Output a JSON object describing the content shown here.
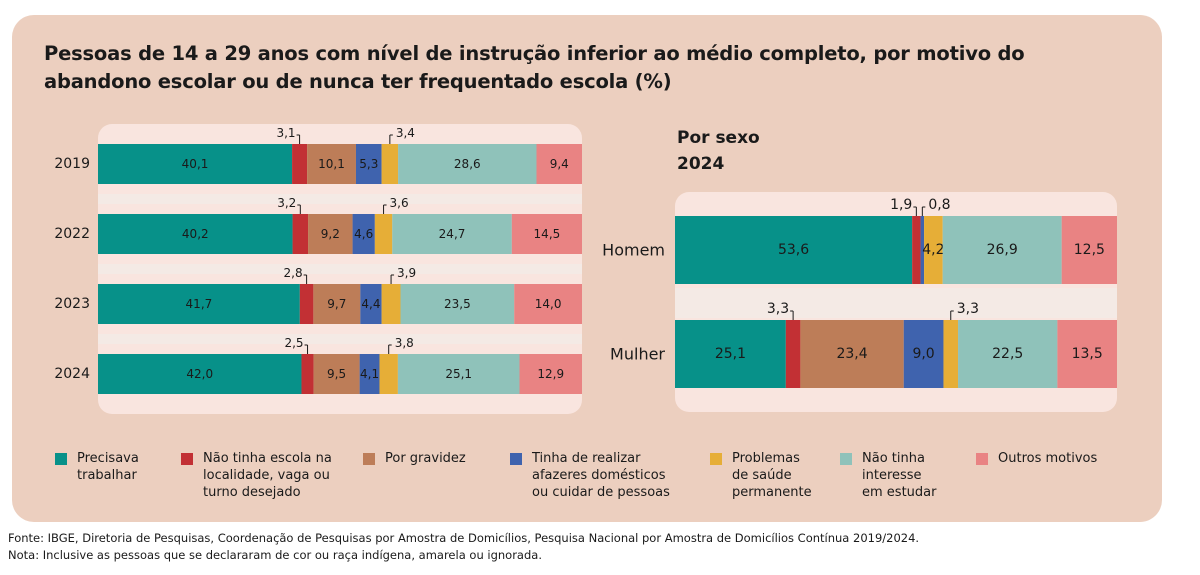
{
  "title": {
    "line1": "Pessoas de 14 a 29 anos com nível de instrução inferior ao médio completo, por motivo do",
    "line2": "abandono escolar ou de nunca ter frequentado escola (%)"
  },
  "subtitle": {
    "line1": "Por sexo",
    "line2": "2024"
  },
  "colors": {
    "card_bg": "#eccfbf",
    "trabalhar": "#079189",
    "escola": "#c23034",
    "gravidez": "#bd7d58",
    "afazeres": "#3f63ae",
    "saude": "#e6ae37",
    "interesse": "#8fc2ba",
    "outros": "#e98383"
  },
  "legend": [
    {
      "key": "trabalhar",
      "label": "Precisava\ntrabalhar",
      "color": "#079189"
    },
    {
      "key": "escola",
      "label": "Não tinha escola na\nlocalidade, vaga ou\nturno desejado",
      "color": "#c23034"
    },
    {
      "key": "gravidez",
      "label": "Por gravidez",
      "color": "#bd7d58"
    },
    {
      "key": "afazeres",
      "label": "Tinha de realizar\nafazeres domésticos\nou cuidar de pessoas",
      "color": "#3f63ae"
    },
    {
      "key": "saude",
      "label": "Problemas\nde saúde\npermanente",
      "color": "#e6ae37"
    },
    {
      "key": "interesse",
      "label": "Não tinha\ninteresse\n em estudar",
      "color": "#8fc2ba"
    },
    {
      "key": "outros",
      "label": "Outros motivos",
      "color": "#e98383"
    }
  ],
  "chart_data": [
    {
      "type": "bar",
      "orientation": "horizontal",
      "stacked": "100%",
      "categories": [
        "2019",
        "2022",
        "2023",
        "2024"
      ],
      "series": [
        {
          "name": "Precisava trabalhar",
          "values": [
            40.1,
            40.2,
            41.7,
            42.0
          ]
        },
        {
          "name": "Não tinha escola na localidade, vaga ou turno desejado",
          "values": [
            3.1,
            3.2,
            2.8,
            2.5
          ]
        },
        {
          "name": "Por gravidez",
          "values": [
            10.1,
            9.2,
            9.7,
            9.5
          ]
        },
        {
          "name": "Tinha de realizar afazeres domésticos ou cuidar de pessoas",
          "values": [
            5.3,
            4.6,
            4.4,
            4.1
          ]
        },
        {
          "name": "Problemas de saúde permanente",
          "values": [
            3.4,
            3.6,
            3.9,
            3.8
          ]
        },
        {
          "name": "Não tinha interesse em estudar",
          "values": [
            28.6,
            24.7,
            23.5,
            25.1
          ]
        },
        {
          "name": "Outros motivos",
          "values": [
            9.4,
            14.5,
            14.0,
            12.9
          ]
        }
      ],
      "labels": [
        [
          "40,1",
          "3,1",
          "10,1",
          "5,3",
          "3,4",
          "28,6",
          "9,4"
        ],
        [
          "40,2",
          "3,2",
          "9,2",
          "4,6",
          "3,6",
          "24,7",
          "14,5"
        ],
        [
          "41,7",
          "2,8",
          "9,7",
          "4,4",
          "3,9",
          "23,5",
          "14,0"
        ],
        [
          "42,0",
          "2,5",
          "9,5",
          "4,1",
          "3,8",
          "25,1",
          "12,9"
        ]
      ],
      "callouts": [
        1,
        4
      ],
      "legend": "bottom"
    },
    {
      "type": "bar",
      "orientation": "horizontal",
      "stacked": "100%",
      "title": "Por sexo 2024",
      "categories": [
        "Homem",
        "Mulher"
      ],
      "series": [
        {
          "name": "Precisava trabalhar",
          "values": [
            53.6,
            25.1
          ]
        },
        {
          "name": "Não tinha escola na localidade, vaga ou turno desejado",
          "values": [
            1.9,
            3.3
          ]
        },
        {
          "name": "Por gravidez",
          "values": [
            0,
            23.4
          ]
        },
        {
          "name": "Tinha de realizar afazeres domésticos ou cuidar de pessoas",
          "values": [
            0.8,
            9.0
          ]
        },
        {
          "name": "Problemas de saúde permanente",
          "values": [
            4.2,
            3.3
          ]
        },
        {
          "name": "Não tinha interesse em estudar",
          "values": [
            26.9,
            22.5
          ]
        },
        {
          "name": "Outros motivos",
          "values": [
            12.5,
            13.5
          ]
        }
      ],
      "labels": [
        [
          "53,6",
          "1,9",
          "",
          "0,8",
          "4,2",
          "26,9",
          "12,5"
        ],
        [
          "25,1",
          "3,3",
          "23,4",
          "9,0",
          "3,3",
          "22,5",
          "13,5"
        ]
      ],
      "callouts_by_row": [
        [
          1,
          3
        ],
        [
          1,
          4
        ]
      ],
      "legend": "bottom"
    }
  ],
  "footer": {
    "source": "Fonte: IBGE, Diretoria de Pesquisas, Coordenação de Pesquisas por Amostra de Domicílios, Pesquisa Nacional por Amostra de Domicílios Contínua 2019/2024.",
    "note": "Nota: Inclusive as pessoas que se declararam de cor ou raça indígena, amarela ou ignorada."
  }
}
